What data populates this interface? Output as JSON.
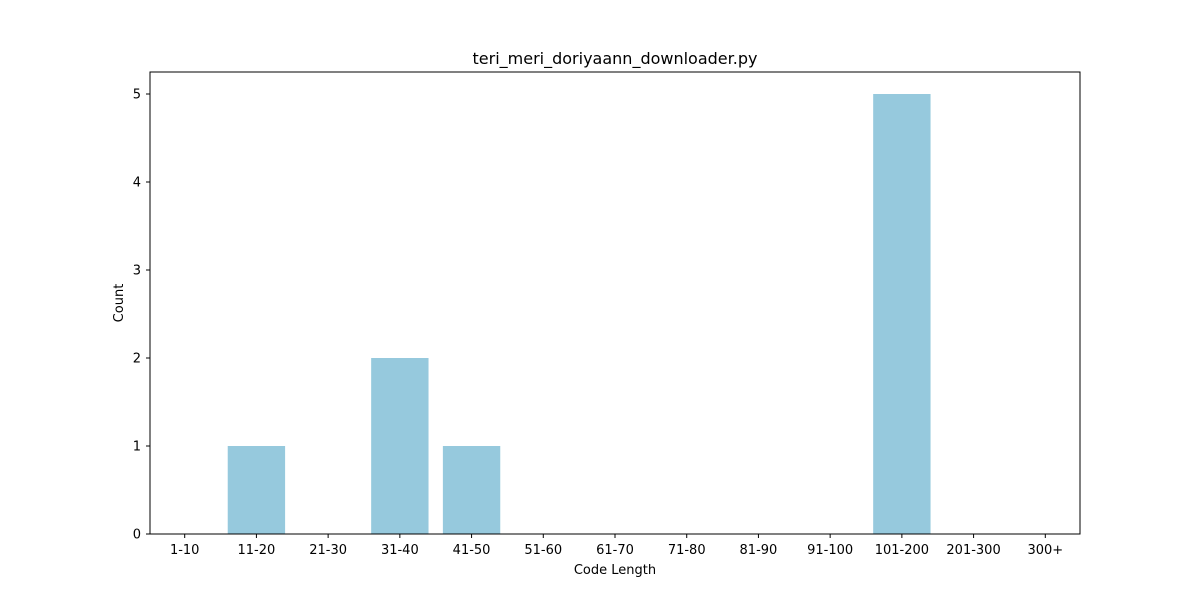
{
  "chart_data": {
    "type": "bar",
    "title": "teri_meri_doriyaann_downloader.py",
    "xlabel": "Code Length",
    "ylabel": "Count",
    "categories": [
      "1-10",
      "11-20",
      "21-30",
      "31-40",
      "41-50",
      "51-60",
      "61-70",
      "71-80",
      "81-90",
      "91-100",
      "101-200",
      "201-300",
      "300+"
    ],
    "values": [
      0,
      1,
      0,
      2,
      1,
      0,
      0,
      0,
      0,
      0,
      5,
      0,
      0
    ],
    "ylim": [
      0,
      5.25
    ],
    "yticks": [
      0,
      1,
      2,
      3,
      4,
      5
    ],
    "bar_color": "#96c9dd",
    "grid": false,
    "legend": "none"
  }
}
